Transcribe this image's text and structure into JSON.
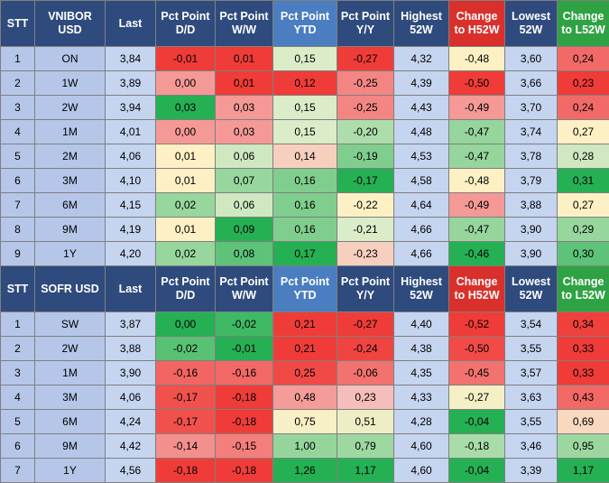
{
  "columns_vnibor": [
    "STT",
    "VNIBOR USD",
    "Last",
    "Pct Point D/D",
    "Pct Point W/W",
    "Pct Point YTD",
    "Pct Point Y/Y",
    "Highest 52W",
    "Change to H52W",
    "Lowest 52W",
    "Change to L52W"
  ],
  "columns_sofr": [
    "STT",
    "SOFR USD",
    "Last",
    "Pct Point D/D",
    "Pct Point W/W",
    "Pct Point YTD",
    "Pct Point Y/Y",
    "Highest 52W",
    "Change to H52W",
    "Lowest 52W",
    "Change to L52W"
  ],
  "vnibor_rows": [
    {
      "stt": "1",
      "tenor": "ON",
      "last": "3,84",
      "dd": "-0,01",
      "ww": "0,01",
      "ytd": "0,15",
      "yy": "-0,27",
      "high": "4,32",
      "ch_high": "-0,48",
      "low": "3,60",
      "ch_low": "0,24"
    },
    {
      "stt": "2",
      "tenor": "1W",
      "last": "3,89",
      "dd": "0,00",
      "ww": "0,01",
      "ytd": "0,12",
      "yy": "-0,25",
      "high": "4,39",
      "ch_high": "-0,50",
      "low": "3,66",
      "ch_low": "0,23"
    },
    {
      "stt": "3",
      "tenor": "2W",
      "last": "3,94",
      "dd": "0,03",
      "ww": "0,03",
      "ytd": "0,15",
      "yy": "-0,25",
      "high": "4,43",
      "ch_high": "-0,49",
      "low": "3,70",
      "ch_low": "0,24"
    },
    {
      "stt": "4",
      "tenor": "1M",
      "last": "4,01",
      "dd": "0,00",
      "ww": "0,03",
      "ytd": "0,15",
      "yy": "-0,20",
      "high": "4,48",
      "ch_high": "-0,47",
      "low": "3,74",
      "ch_low": "0,27"
    },
    {
      "stt": "5",
      "tenor": "2M",
      "last": "4,06",
      "dd": "0,01",
      "ww": "0,06",
      "ytd": "0,14",
      "yy": "-0,19",
      "high": "4,53",
      "ch_high": "-0,47",
      "low": "3,78",
      "ch_low": "0,28"
    },
    {
      "stt": "6",
      "tenor": "3M",
      "last": "4,10",
      "dd": "0,01",
      "ww": "0,07",
      "ytd": "0,16",
      "yy": "-0,17",
      "high": "4,58",
      "ch_high": "-0,48",
      "low": "3,79",
      "ch_low": "0,31"
    },
    {
      "stt": "7",
      "tenor": "6M",
      "last": "4,15",
      "dd": "0,02",
      "ww": "0,06",
      "ytd": "0,16",
      "yy": "-0,22",
      "high": "4,64",
      "ch_high": "-0,49",
      "low": "3,88",
      "ch_low": "0,27"
    },
    {
      "stt": "8",
      "tenor": "9M",
      "last": "4,19",
      "dd": "0,01",
      "ww": "0,09",
      "ytd": "0,16",
      "yy": "-0,21",
      "high": "4,66",
      "ch_high": "-0,47",
      "low": "3,90",
      "ch_low": "0,29"
    },
    {
      "stt": "9",
      "tenor": "1Y",
      "last": "4,20",
      "dd": "0,02",
      "ww": "0,08",
      "ytd": "0,17",
      "yy": "-0,23",
      "high": "4,66",
      "ch_high": "-0,46",
      "low": "3,90",
      "ch_low": "0,30"
    }
  ],
  "sofr_rows": [
    {
      "stt": "1",
      "tenor": "SW",
      "last": "3,87",
      "dd": "0,00",
      "ww": "-0,02",
      "ytd": "0,21",
      "yy": "-0,27",
      "high": "4,40",
      "ch_high": "-0,52",
      "low": "3,54",
      "ch_low": "0,34"
    },
    {
      "stt": "2",
      "tenor": "2W",
      "last": "3,88",
      "dd": "-0,02",
      "ww": "-0,01",
      "ytd": "0,21",
      "yy": "-0,24",
      "high": "4,38",
      "ch_high": "-0,50",
      "low": "3,55",
      "ch_low": "0,33"
    },
    {
      "stt": "3",
      "tenor": "1M",
      "last": "3,90",
      "dd": "-0,16",
      "ww": "-0,16",
      "ytd": "0,25",
      "yy": "-0,06",
      "high": "4,35",
      "ch_high": "-0,45",
      "low": "3,57",
      "ch_low": "0,33"
    },
    {
      "stt": "4",
      "tenor": "3M",
      "last": "4,06",
      "dd": "-0,17",
      "ww": "-0,18",
      "ytd": "0,48",
      "yy": "0,23",
      "high": "4,33",
      "ch_high": "-0,27",
      "low": "3,63",
      "ch_low": "0,43"
    },
    {
      "stt": "5",
      "tenor": "6M",
      "last": "4,24",
      "dd": "-0,17",
      "ww": "-0,18",
      "ytd": "0,75",
      "yy": "0,51",
      "high": "4,28",
      "ch_high": "-0,04",
      "low": "3,55",
      "ch_low": "0,69"
    },
    {
      "stt": "6",
      "tenor": "9M",
      "last": "4,42",
      "dd": "-0,14",
      "ww": "-0,15",
      "ytd": "1,00",
      "yy": "0,79",
      "high": "4,60",
      "ch_high": "-0,18",
      "low": "3,46",
      "ch_low": "0,95"
    },
    {
      "stt": "7",
      "tenor": "1Y",
      "last": "4,56",
      "dd": "-0,18",
      "ww": "-0,18",
      "ytd": "1,26",
      "yy": "1,17",
      "high": "4,60",
      "ch_high": "-0,04",
      "low": "3,39",
      "ch_low": "1,17"
    }
  ],
  "colors": {
    "header_bg": "#2f4b7d",
    "header_highest_change": "#d9302c",
    "header_lowest_change": "#2fa244",
    "header_ytd": "#4a7ec0",
    "index_cell_bg": "#b6c6e9",
    "value_cell_bg": "#c5d4ef"
  }
}
